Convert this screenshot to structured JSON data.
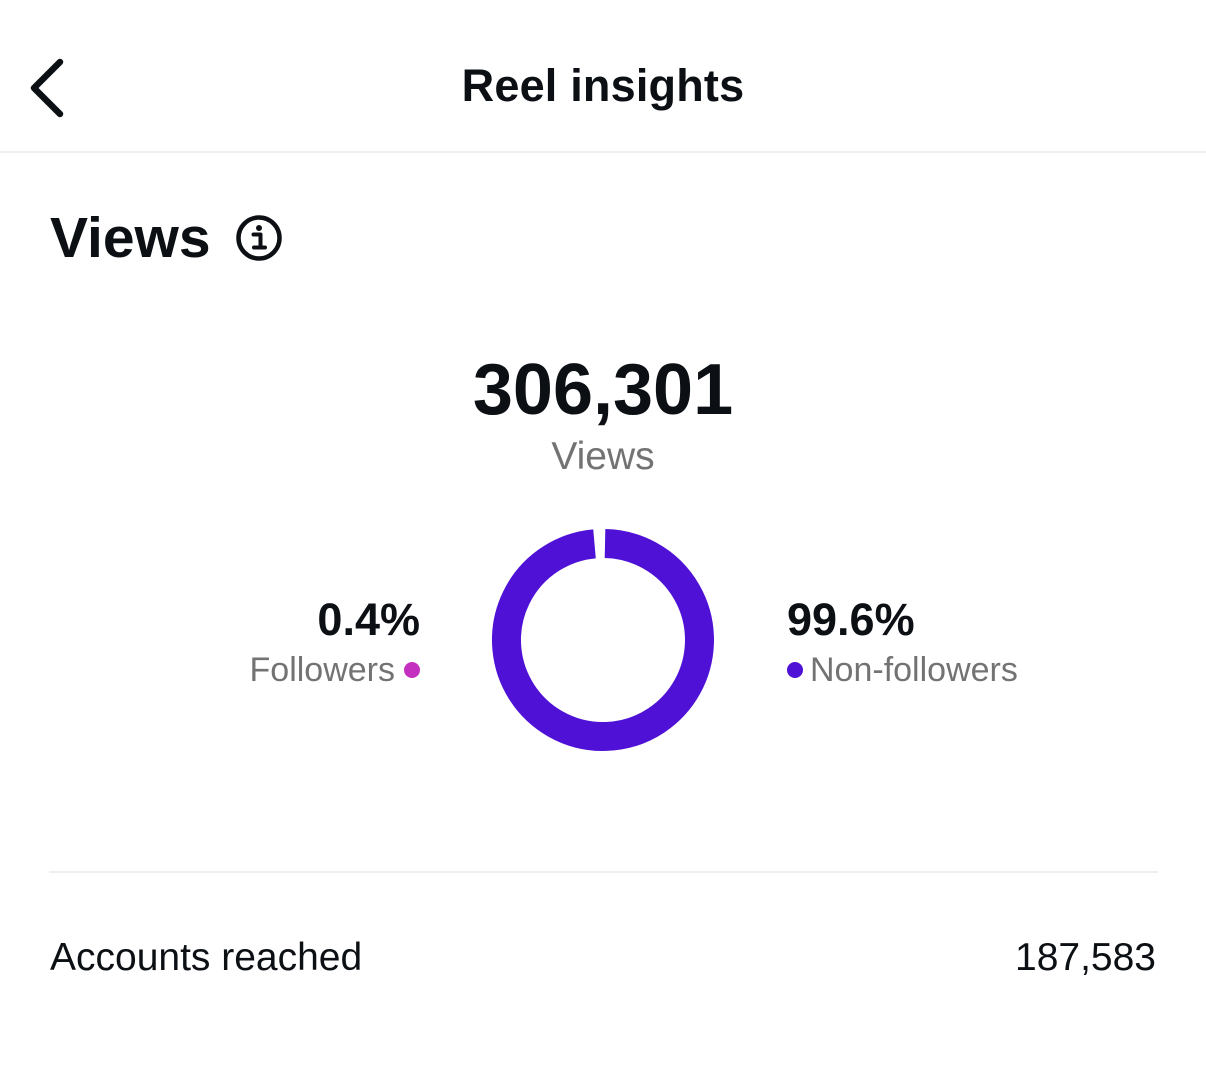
{
  "header": {
    "title": "Reel insights",
    "back_icon": "chevron-left-icon"
  },
  "section": {
    "title": "Views",
    "info_icon": "info-icon"
  },
  "views": {
    "total": "306,301",
    "total_label": "Views"
  },
  "breakdown": {
    "followers": {
      "percent": "0.4%",
      "label": "Followers",
      "value": 0.4,
      "color": "#c42fc0"
    },
    "non_followers": {
      "percent": "99.6%",
      "label": "Non-followers",
      "value": 99.6,
      "color": "#4f11d6"
    }
  },
  "accounts_reached": {
    "label": "Accounts reached",
    "value": "187,583"
  }
}
